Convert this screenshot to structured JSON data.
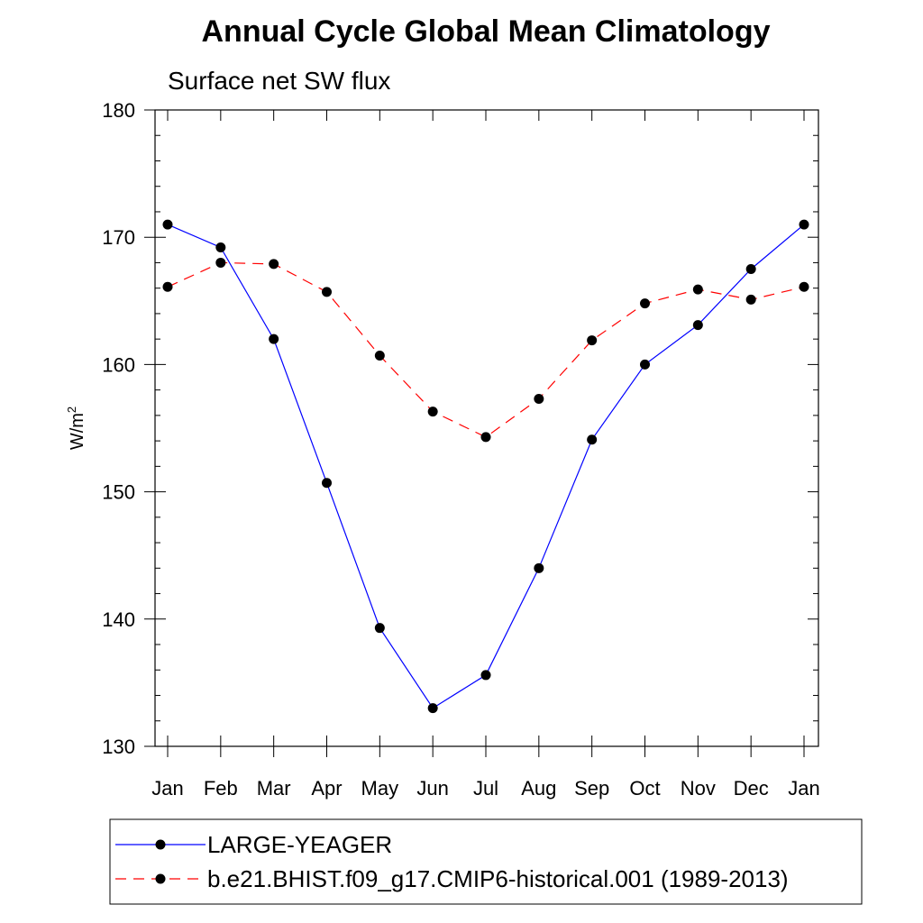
{
  "chart_data": {
    "type": "line",
    "title": "Annual Cycle Global Mean Climatology",
    "subtitle": "Surface net SW flux",
    "xlabel": "",
    "ylabel": "W/m",
    "ylabel_superscript": "2",
    "categories": [
      "Jan",
      "Feb",
      "Mar",
      "Apr",
      "May",
      "Jun",
      "Jul",
      "Aug",
      "Sep",
      "Oct",
      "Nov",
      "Dec",
      "Jan"
    ],
    "ylim": [
      130,
      180
    ],
    "yticks": [
      130,
      140,
      150,
      160,
      170,
      180
    ],
    "ytick_labels": [
      "130",
      "140",
      "150",
      "160",
      "170",
      "180"
    ],
    "grid": false,
    "legend_position": "bottom",
    "series": [
      {
        "name": "LARGE-YEAGER",
        "color": "#0000ff",
        "line_style": "solid",
        "marker": "filled-circle",
        "values": [
          171.0,
          169.2,
          162.0,
          150.7,
          139.3,
          133.0,
          135.6,
          144.0,
          154.1,
          160.0,
          163.1,
          167.5,
          171.0
        ]
      },
      {
        "name": "b.e21.BHIST.f09_g17.CMIP6-historical.001 (1989-2013)",
        "color": "#ff0000",
        "line_style": "dashed",
        "marker": "filled-circle",
        "values": [
          166.1,
          168.0,
          167.9,
          165.7,
          160.7,
          156.3,
          154.3,
          157.3,
          161.9,
          164.8,
          165.9,
          165.1,
          166.1
        ]
      }
    ]
  }
}
